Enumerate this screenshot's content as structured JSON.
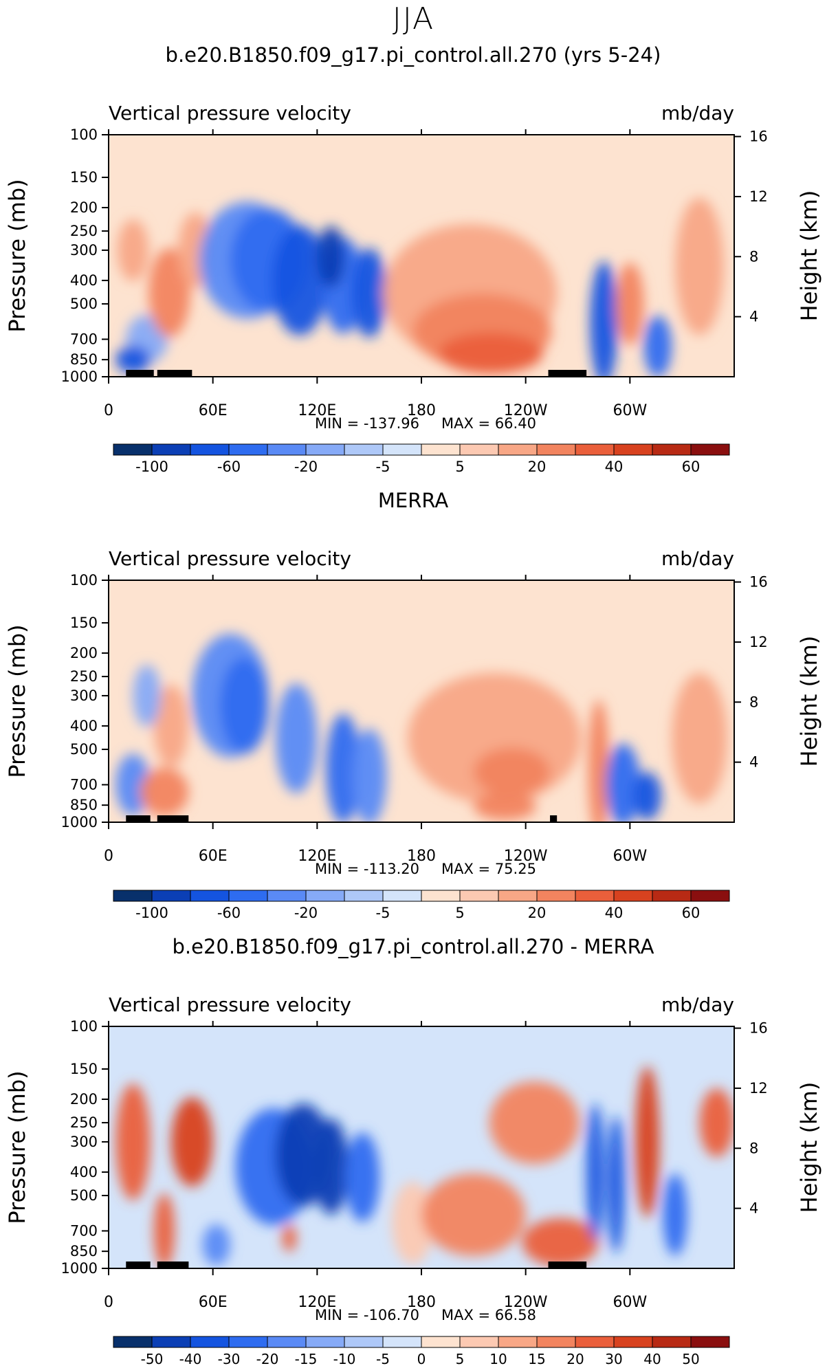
{
  "season": "JJA",
  "chart_data": [
    {
      "type": "heatmap",
      "title": "b.e20.B1850.f09_g17.pi_control.all.270 (yrs 5-24)",
      "variable": "Vertical pressure velocity",
      "units": "mb/day",
      "ylabel": "Pressure (mb)",
      "y2label": "Height (km)",
      "pressure_ticks": [
        "100",
        "150",
        "200",
        "250",
        "300",
        "400",
        "500",
        "700",
        "850",
        "1000"
      ],
      "height_ticks": [
        "16",
        "12",
        "8",
        "4"
      ],
      "x_ticks": [
        "0",
        "60E",
        "120E",
        "180",
        "120W",
        "60W"
      ],
      "min_label": "MIN = -137.96",
      "max_label": "MAX =   66.40",
      "colorbar_labels": [
        "-100",
        "-60",
        "-20",
        "-5",
        "5",
        "20",
        "40",
        "60"
      ],
      "colorbar_levels": [
        "-120",
        "-100",
        "-80",
        "-60",
        "-40",
        "-20",
        "-10",
        "-5",
        "0",
        "5",
        "10",
        "20",
        "30",
        "40",
        "50",
        "60"
      ]
    },
    {
      "type": "heatmap",
      "title": "MERRA",
      "variable": "Vertical pressure velocity",
      "units": "mb/day",
      "ylabel": "Pressure (mb)",
      "y2label": "Height (km)",
      "pressure_ticks": [
        "100",
        "150",
        "200",
        "250",
        "300",
        "400",
        "500",
        "700",
        "850",
        "1000"
      ],
      "height_ticks": [
        "16",
        "12",
        "8",
        "4"
      ],
      "x_ticks": [
        "0",
        "60E",
        "120E",
        "180",
        "120W",
        "60W"
      ],
      "min_label": "MIN = -113.20",
      "max_label": "MAX =   75.25",
      "colorbar_labels": [
        "-100",
        "-60",
        "-20",
        "-5",
        "5",
        "20",
        "40",
        "60"
      ],
      "colorbar_levels": [
        "-120",
        "-100",
        "-80",
        "-60",
        "-40",
        "-20",
        "-10",
        "-5",
        "0",
        "5",
        "10",
        "20",
        "30",
        "40",
        "50",
        "60"
      ]
    },
    {
      "type": "heatmap",
      "title": "b.e20.B1850.f09_g17.pi_control.all.270 - MERRA",
      "variable": "Vertical pressure velocity",
      "units": "mb/day",
      "ylabel": "Pressure (mb)",
      "y2label": "Height (km)",
      "pressure_ticks": [
        "100",
        "150",
        "200",
        "250",
        "300",
        "400",
        "500",
        "700",
        "850",
        "1000"
      ],
      "height_ticks": [
        "16",
        "12",
        "8",
        "4"
      ],
      "x_ticks": [
        "0",
        "60E",
        "120E",
        "180",
        "120W",
        "60W"
      ],
      "min_label": "MIN = -106.70",
      "max_label": "MAX =   66.58",
      "colorbar_labels": [
        "-50",
        "-40",
        "-30",
        "-20",
        "-15",
        "-10",
        "-5",
        "0",
        "5",
        "10",
        "15",
        "20",
        "30",
        "40",
        "50"
      ],
      "colorbar_levels": [
        "-60",
        "-50",
        "-40",
        "-30",
        "-20",
        "-15",
        "-10",
        "-5",
        "0",
        "5",
        "10",
        "15",
        "20",
        "30",
        "40",
        "50"
      ]
    }
  ],
  "colors": {
    "colorbar": [
      "#08306b",
      "#0b3fb5",
      "#1454e0",
      "#2e6cf0",
      "#5a8af5",
      "#86aaf7",
      "#aec8f8",
      "#d4e4fa",
      "#fde3d0",
      "#fcc9b2",
      "#f8a786",
      "#f2845f",
      "#ea5f3b",
      "#d8421f",
      "#b82a14",
      "#8a0f0f"
    ]
  }
}
